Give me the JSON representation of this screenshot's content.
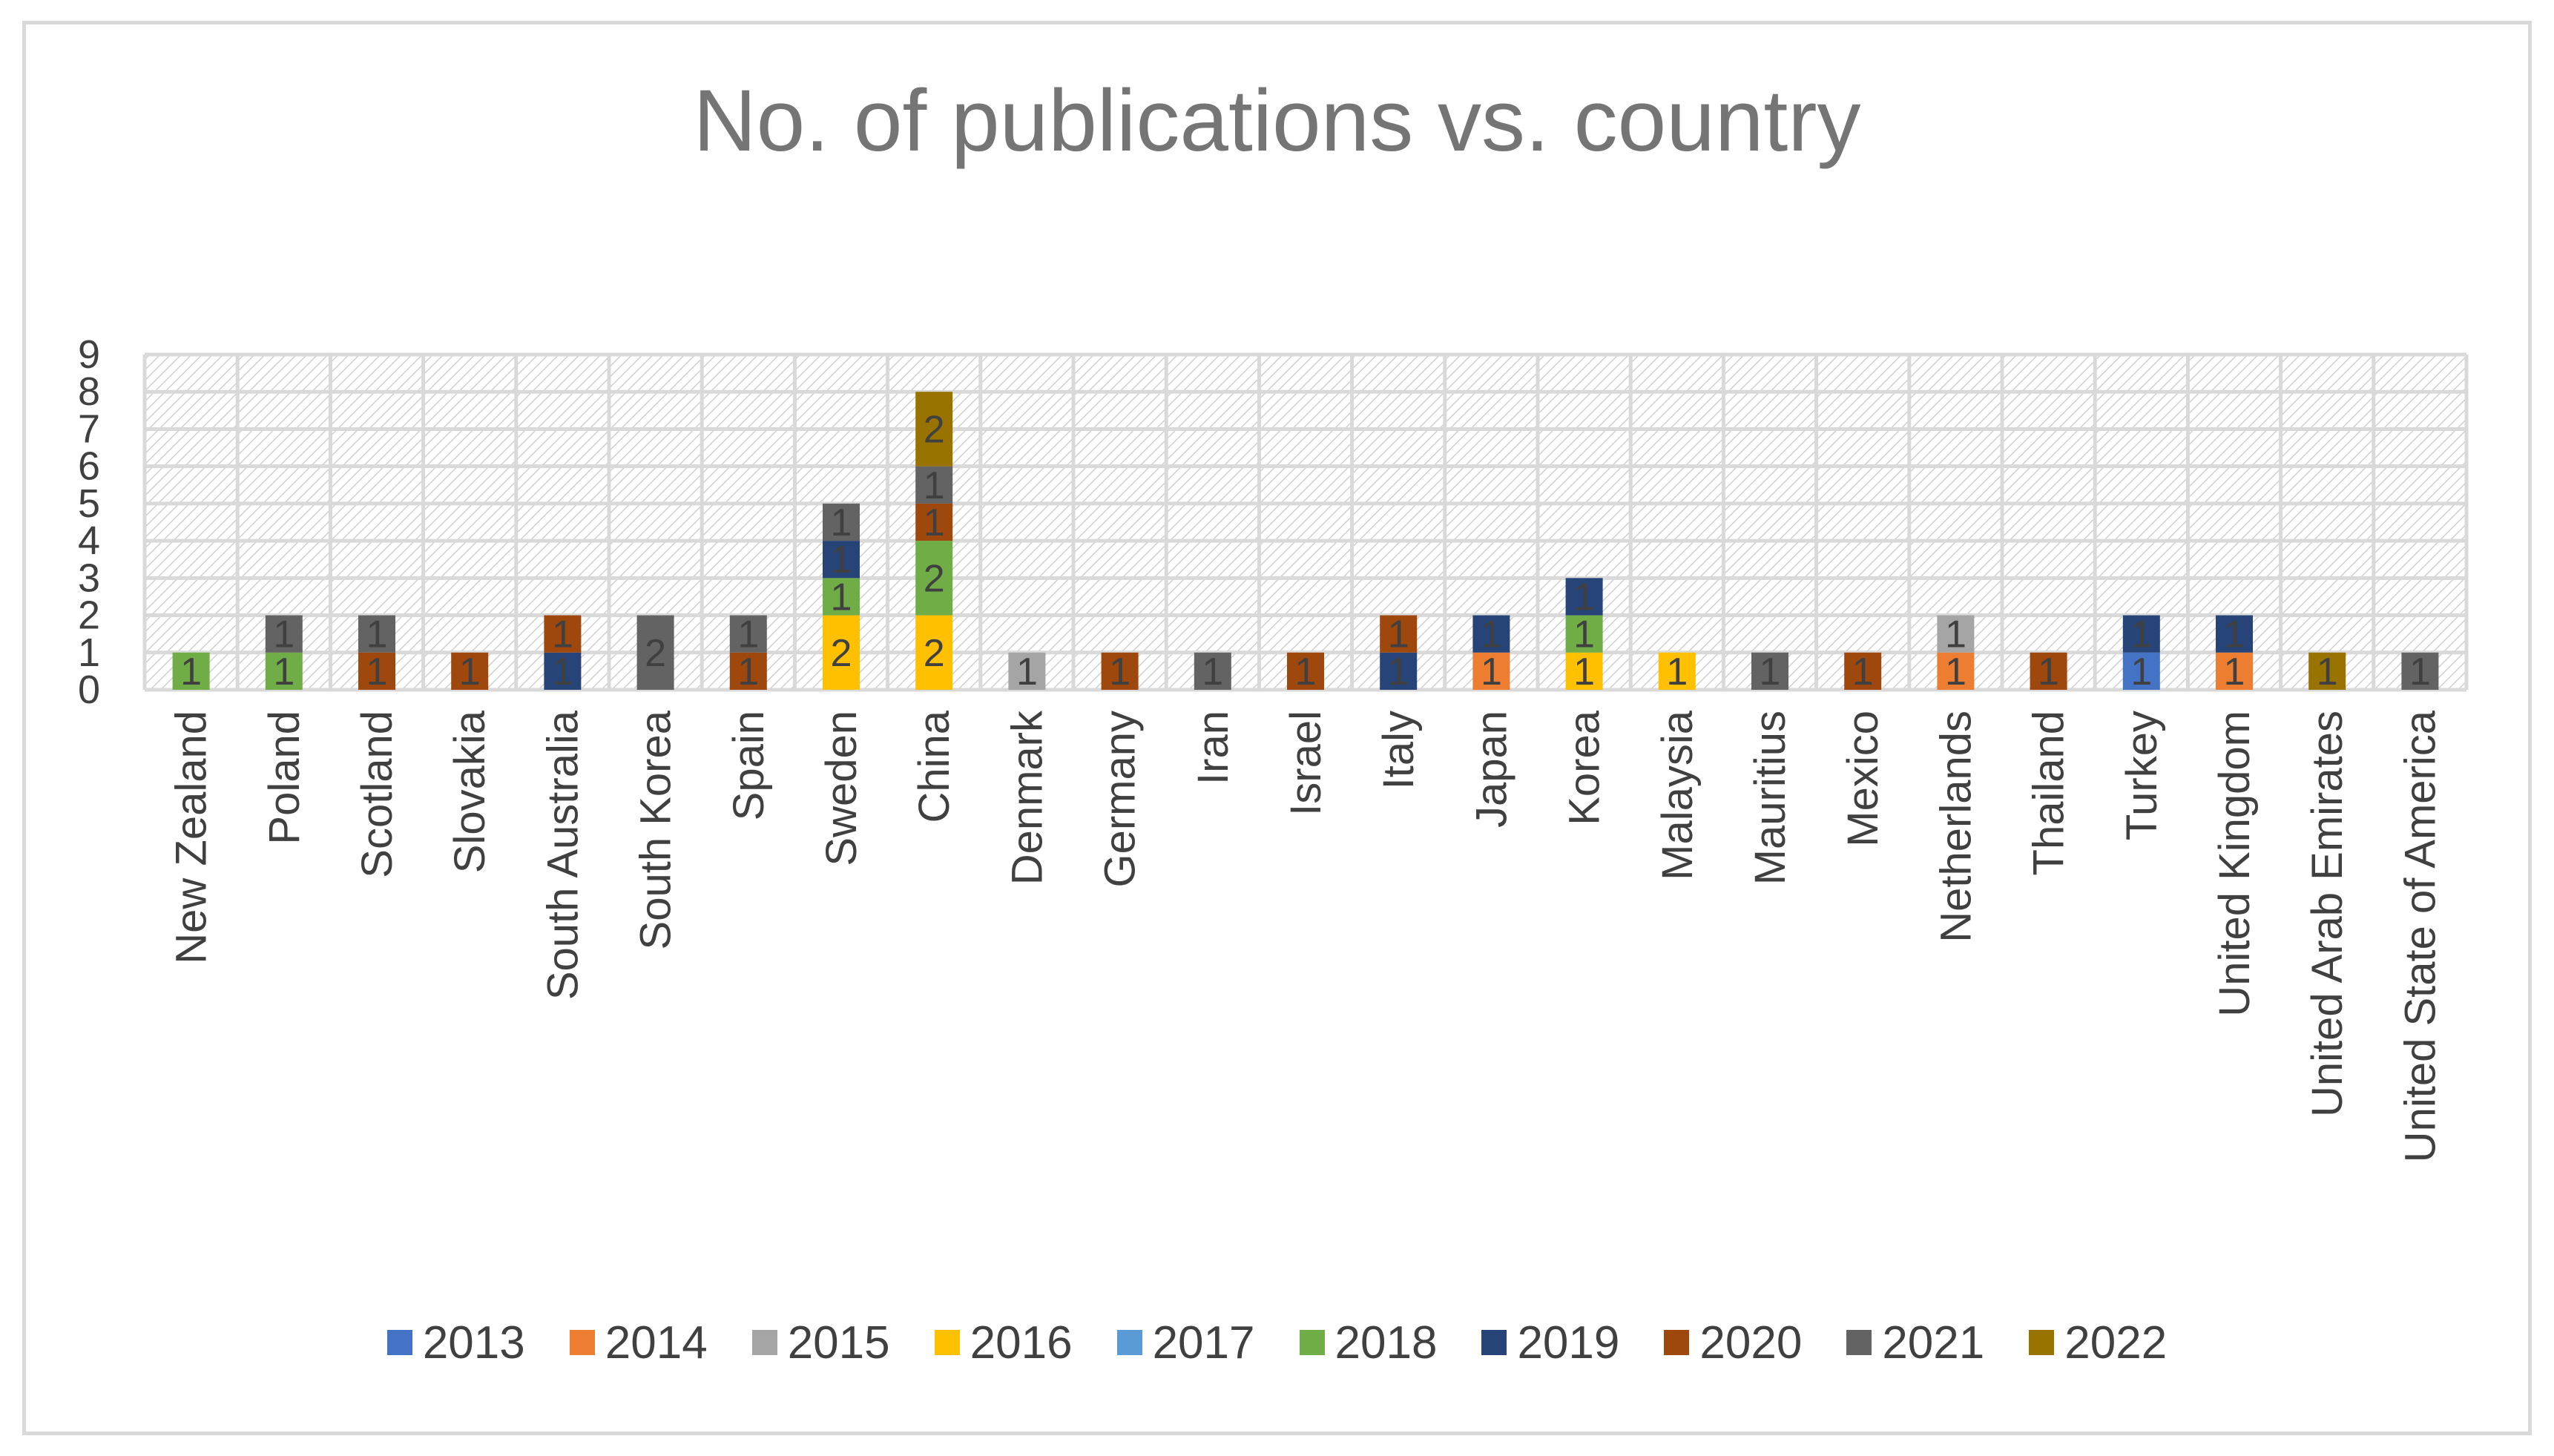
{
  "chart_data": {
    "type": "bar",
    "stacked": true,
    "title": "No. of publications vs. country",
    "xlabel": "",
    "ylabel": "",
    "ylim": [
      0,
      9
    ],
    "yticks": [
      0,
      1,
      2,
      3,
      4,
      5,
      6,
      7,
      8,
      9
    ],
    "legend_position": "bottom",
    "categories": [
      "New Zealand",
      "Poland",
      "Scotland",
      "Slovakia",
      "South Australia",
      "South Korea",
      "Spain",
      "Sweden",
      "China",
      "Denmark",
      "Germany",
      "Iran",
      "Israel",
      "Italy",
      "Japan",
      "Korea",
      "Malaysia",
      "Mauritius",
      "Mexico",
      "Netherlands",
      "Thailand",
      "Turkey",
      "United Kingdom",
      "United Arab Emirates",
      "United State of America"
    ],
    "series": [
      {
        "name": "2013",
        "color": "#4472c4",
        "values": [
          0,
          0,
          0,
          0,
          0,
          0,
          0,
          0,
          0,
          0,
          0,
          0,
          0,
          0,
          0,
          0,
          0,
          0,
          0,
          0,
          0,
          1,
          0,
          0,
          0
        ]
      },
      {
        "name": "2014",
        "color": "#ed7d31",
        "values": [
          0,
          0,
          0,
          0,
          0,
          0,
          0,
          0,
          0,
          0,
          0,
          0,
          0,
          0,
          1,
          0,
          0,
          0,
          0,
          1,
          0,
          0,
          1,
          0,
          0
        ]
      },
      {
        "name": "2015",
        "color": "#a5a5a5",
        "values": [
          0,
          0,
          0,
          0,
          0,
          0,
          0,
          0,
          0,
          1,
          0,
          0,
          0,
          0,
          0,
          0,
          0,
          0,
          0,
          1,
          0,
          0,
          0,
          0,
          0
        ]
      },
      {
        "name": "2016",
        "color": "#ffc000",
        "values": [
          0,
          0,
          0,
          0,
          0,
          0,
          0,
          2,
          2,
          0,
          0,
          0,
          0,
          0,
          0,
          1,
          1,
          0,
          0,
          0,
          0,
          0,
          0,
          0,
          0
        ]
      },
      {
        "name": "2017",
        "color": "#5b9bd5",
        "values": [
          0,
          0,
          0,
          0,
          0,
          0,
          0,
          0,
          0,
          0,
          0,
          0,
          0,
          0,
          0,
          0,
          0,
          0,
          0,
          0,
          0,
          0,
          0,
          0,
          0
        ]
      },
      {
        "name": "2018",
        "color": "#70ad47",
        "values": [
          1,
          1,
          0,
          0,
          0,
          0,
          0,
          1,
          2,
          0,
          0,
          0,
          0,
          0,
          0,
          1,
          0,
          0,
          0,
          0,
          0,
          0,
          0,
          0,
          0
        ]
      },
      {
        "name": "2019",
        "color": "#264478",
        "values": [
          0,
          0,
          0,
          0,
          1,
          0,
          0,
          1,
          0,
          0,
          0,
          0,
          0,
          1,
          1,
          1,
          0,
          0,
          0,
          0,
          0,
          1,
          1,
          0,
          0
        ]
      },
      {
        "name": "2020",
        "color": "#9e480e",
        "values": [
          0,
          0,
          1,
          1,
          1,
          0,
          1,
          0,
          1,
          0,
          1,
          0,
          1,
          1,
          0,
          0,
          0,
          0,
          1,
          0,
          1,
          0,
          0,
          0,
          0
        ]
      },
      {
        "name": "2021",
        "color": "#636363",
        "values": [
          0,
          1,
          1,
          0,
          0,
          2,
          1,
          1,
          1,
          0,
          0,
          1,
          0,
          0,
          0,
          0,
          0,
          1,
          0,
          0,
          0,
          0,
          0,
          0,
          1
        ]
      },
      {
        "name": "2022",
        "color": "#997300",
        "values": [
          0,
          0,
          0,
          0,
          0,
          0,
          0,
          0,
          2,
          0,
          0,
          0,
          0,
          0,
          0,
          0,
          0,
          0,
          0,
          0,
          0,
          0,
          0,
          1,
          0
        ]
      }
    ]
  }
}
